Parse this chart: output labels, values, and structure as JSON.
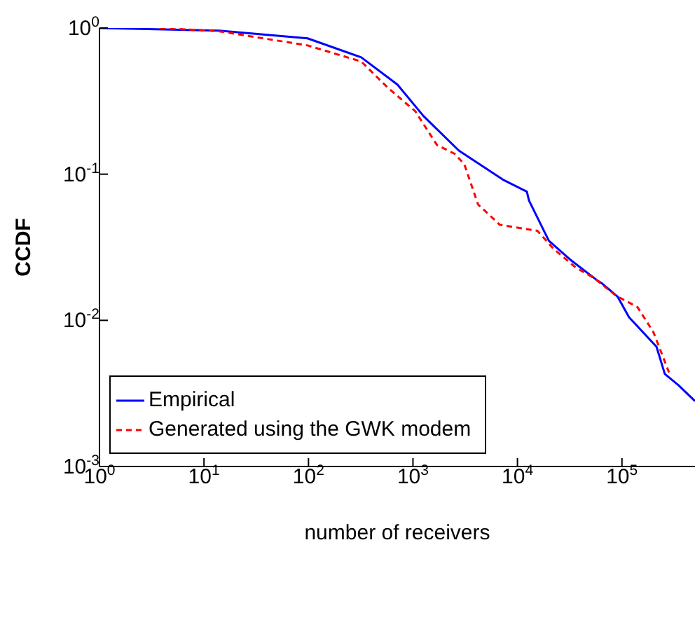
{
  "chart_data": {
    "type": "line",
    "xlabel": "number of receivers",
    "ylabel": "CCDF",
    "log": "xy",
    "xlim": [
      1,
      500000
    ],
    "ylim": [
      0.001,
      1
    ],
    "xticks": [
      {
        "value": 1,
        "label": "10$^{0}$"
      },
      {
        "value": 10,
        "label": "10$^{1}$"
      },
      {
        "value": 100,
        "label": "10$^{2}$"
      },
      {
        "value": 1000,
        "label": "10$^{3}$"
      },
      {
        "value": 10000,
        "label": "10$^{4}$"
      },
      {
        "value": 100000,
        "label": "10$^{5}$"
      }
    ],
    "yticks": [
      {
        "value": 0.001,
        "label": "10$^{-3}$"
      },
      {
        "value": 0.01,
        "label": "10$^{-2}$"
      },
      {
        "value": 0.1,
        "label": "10$^{-1}$"
      },
      {
        "value": 1,
        "label": "10$^{0}$"
      }
    ],
    "legend": "bottom left",
    "marker": "none",
    "series": [
      {
        "name": "Empirical",
        "color": "#0000ff",
        "line_style": "solid",
        "x": [
          1,
          14,
          98,
          320,
          710,
          1260,
          2750,
          7400,
          12300,
          12900,
          20000,
          32000,
          59000,
          65000,
          91000,
          117000,
          214000,
          257000,
          347000,
          500000
        ],
        "values": [
          1,
          0.96,
          0.85,
          0.63,
          0.41,
          0.25,
          0.145,
          0.091,
          0.076,
          0.066,
          0.035,
          0.026,
          0.0186,
          0.0178,
          0.0145,
          0.0105,
          0.0066,
          0.0043,
          0.0036,
          0.0028
        ]
      },
      {
        "name": "Generated using the GWK modem",
        "color": "#ff0000",
        "line_style": "dashed",
        "x": [
          3.8,
          14,
          98,
          320,
          575,
          1050,
          1700,
          2500,
          3100,
          4200,
          6800,
          15500,
          22000,
          36000,
          54000,
          87000,
          141000,
          200000,
          282000
        ],
        "values": [
          1,
          0.95,
          0.76,
          0.59,
          0.39,
          0.27,
          0.158,
          0.138,
          0.117,
          0.062,
          0.045,
          0.041,
          0.031,
          0.023,
          0.0195,
          0.0148,
          0.0123,
          0.0083,
          0.0044
        ]
      }
    ]
  }
}
